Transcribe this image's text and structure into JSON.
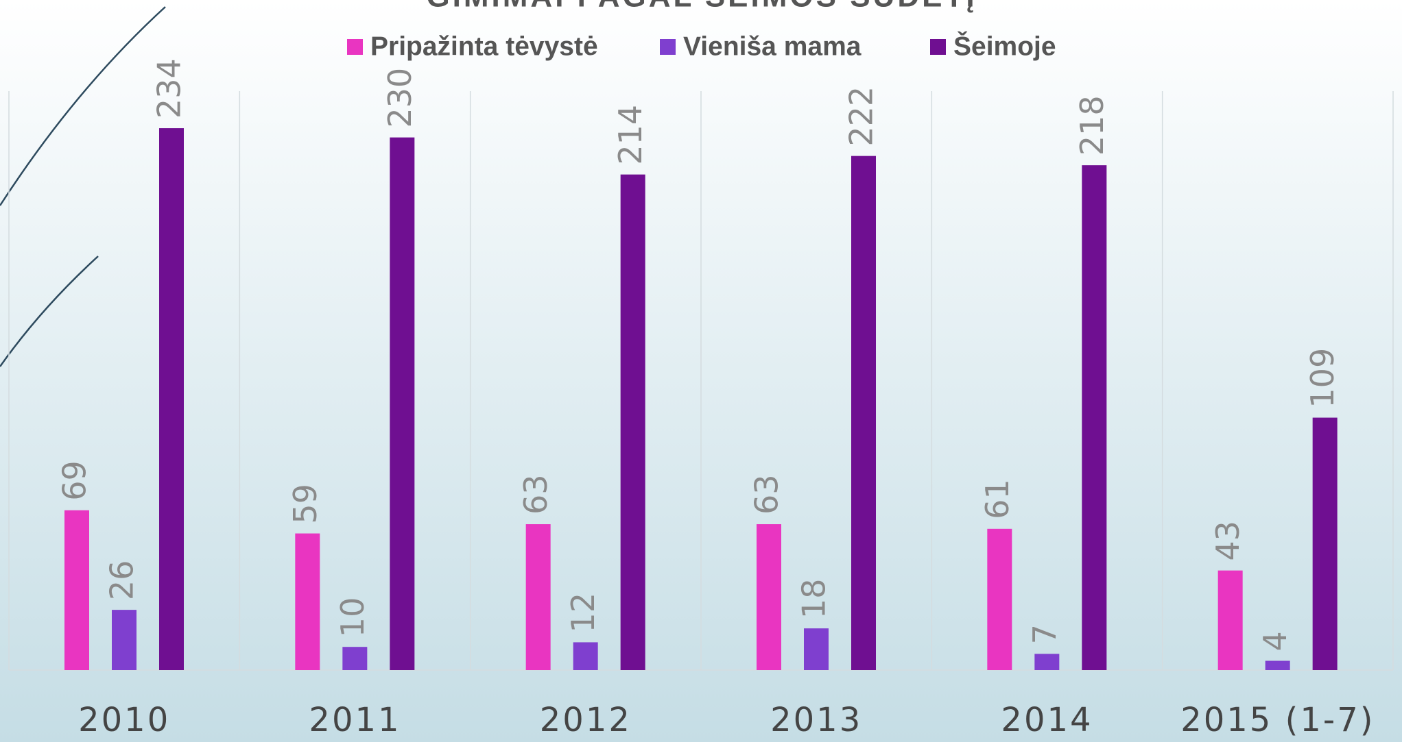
{
  "chart_data": {
    "type": "bar",
    "title": "GIMIMAI PAGAL ŠEIMOS SUDĖTĮ",
    "categories": [
      "2010",
      "2011",
      "2012",
      "2013",
      "2014",
      "2015 (1-7)"
    ],
    "series": [
      {
        "name": "Pripažinta tėvystė",
        "color": "#e935c1",
        "values": [
          69,
          59,
          63,
          63,
          61,
          43
        ]
      },
      {
        "name": "Vienišа mama",
        "color": "#7f3fcf",
        "values": [
          26,
          10,
          12,
          18,
          7,
          4
        ]
      },
      {
        "name": "Šeimoje",
        "color": "#6f0f91",
        "values": [
          234,
          230,
          214,
          222,
          218,
          109
        ]
      }
    ],
    "ylim": [
      0,
      250
    ],
    "legend": "top"
  }
}
